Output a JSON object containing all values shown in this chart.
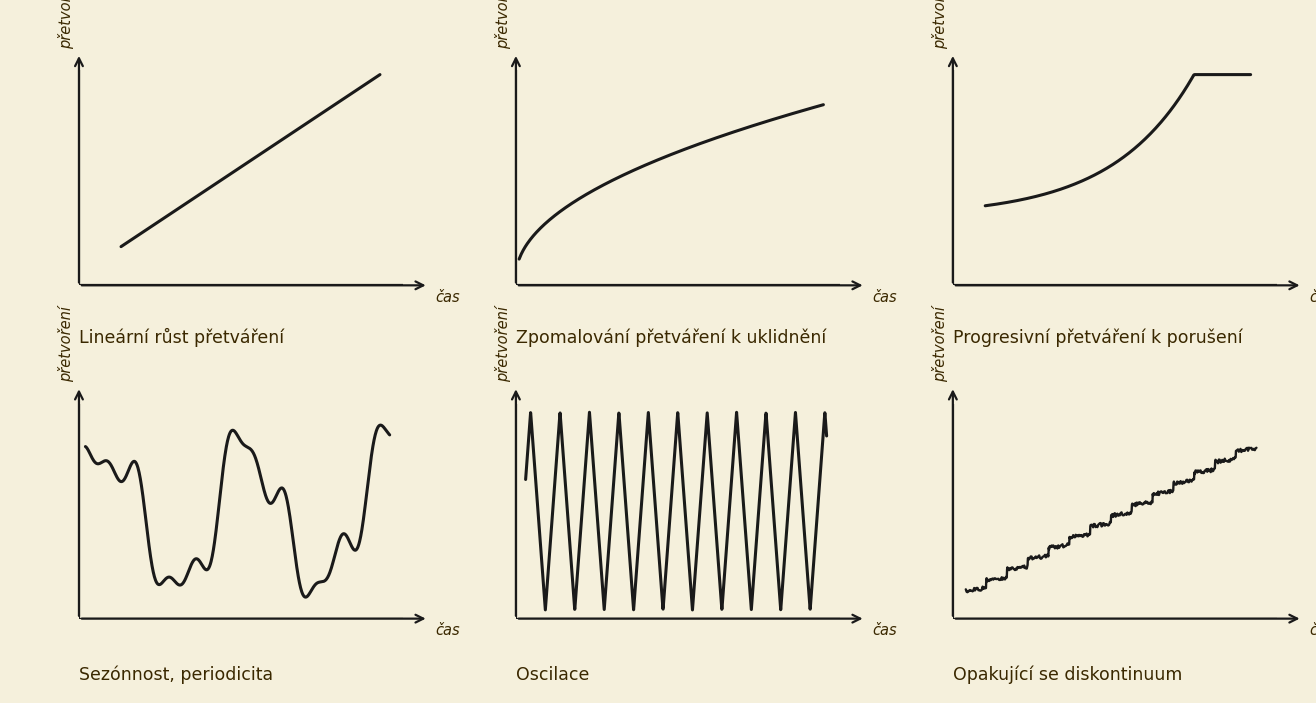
{
  "background_color": "#f5f0dc",
  "line_color": "#1a1a1a",
  "text_color": "#3a2800",
  "ylabel": "přetvoření",
  "xlabel": "čas",
  "titles": [
    "Lineární růst přetváření",
    "Zpomalování přetváření k uklidnění",
    "Progresivní přetváření k porušení",
    "Sezónnost, periodicita",
    "Oscilace",
    "Opakující se diskontinuum"
  ],
  "line_width": 2.2,
  "title_fontsize": 12.5,
  "axis_label_fontsize": 10.5,
  "arrow_lw": 1.6,
  "arrow_mutation_scale": 14
}
